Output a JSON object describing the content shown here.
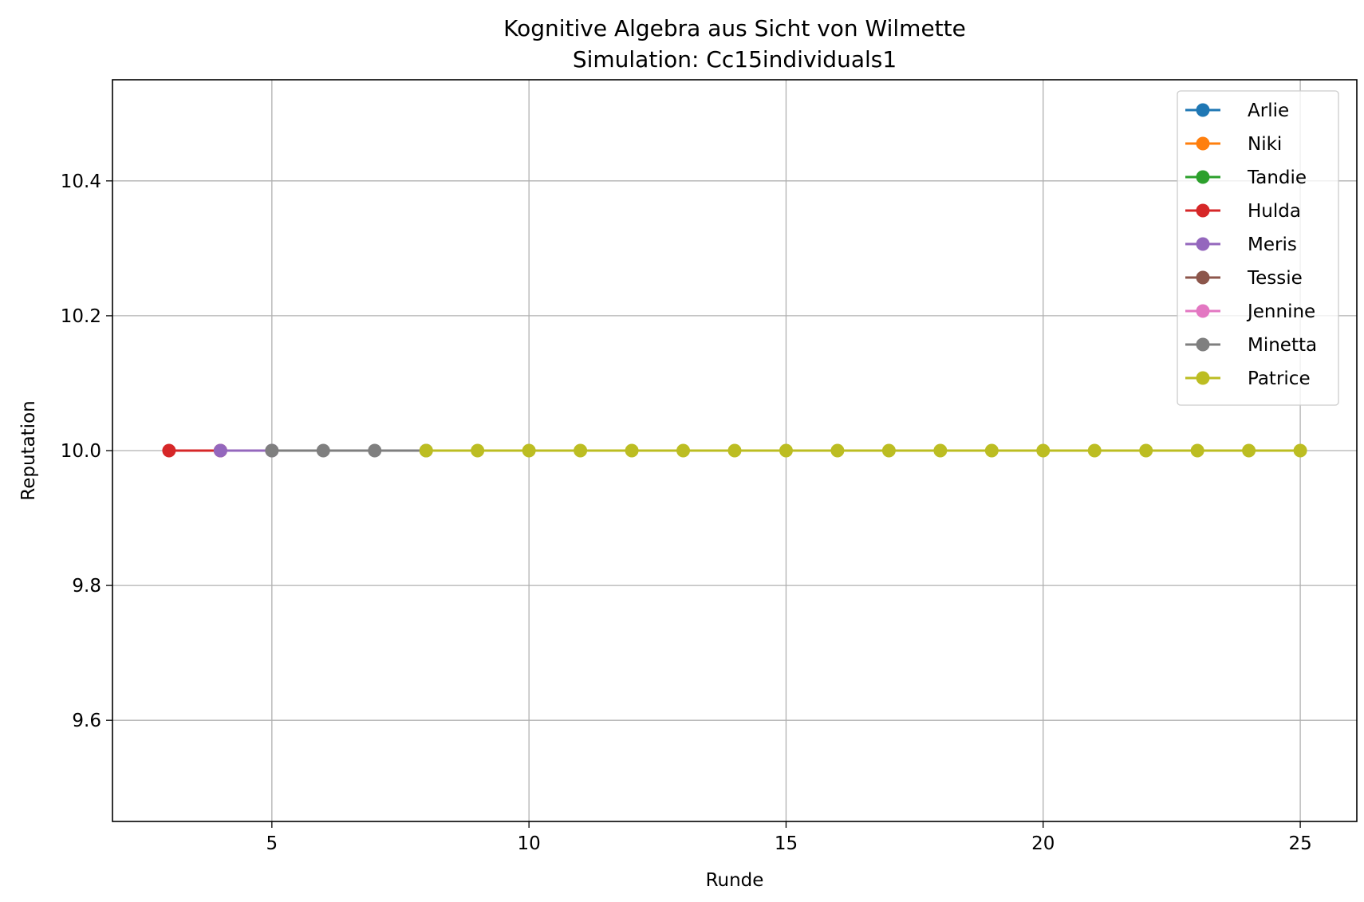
{
  "chart_data": {
    "type": "line",
    "title": "Kognitive Algebra aus Sicht von Wilmette",
    "subtitle": "Simulation: Cc15individuals1",
    "xlabel": "Runde",
    "ylabel": "Reputation",
    "xlim": [
      1.9,
      26.1
    ],
    "ylim": [
      9.45,
      10.55
    ],
    "xticks": [
      5,
      10,
      15,
      20,
      25
    ],
    "xtick_labels": [
      "5",
      "10",
      "15",
      "20",
      "25"
    ],
    "yticks": [
      9.6,
      9.8,
      10.0,
      10.2,
      10.4
    ],
    "ytick_labels": [
      "9.6",
      "9.8",
      "10.0",
      "10.2",
      "10.4"
    ],
    "grid": true,
    "legend_position": "top-right",
    "series": [
      {
        "name": "Arlie",
        "color": "#1f77b4",
        "x": [],
        "y": []
      },
      {
        "name": "Niki",
        "color": "#ff7f0e",
        "x": [],
        "y": []
      },
      {
        "name": "Tandie",
        "color": "#2ca02c",
        "x": [],
        "y": []
      },
      {
        "name": "Hulda",
        "color": "#d62728",
        "x": [
          3,
          4
        ],
        "y": [
          10.0,
          10.0
        ]
      },
      {
        "name": "Meris",
        "color": "#9467bd",
        "x": [
          4,
          5
        ],
        "y": [
          10.0,
          10.0
        ]
      },
      {
        "name": "Tessie",
        "color": "#8c564b",
        "x": [],
        "y": []
      },
      {
        "name": "Jennine",
        "color": "#e377c2",
        "x": [],
        "y": []
      },
      {
        "name": "Minetta",
        "color": "#7f7f7f",
        "x": [
          5,
          6,
          7,
          8
        ],
        "y": [
          10.0,
          10.0,
          10.0,
          10.0
        ]
      },
      {
        "name": "Patrice",
        "color": "#bcbd22",
        "x": [
          8,
          9,
          10,
          11,
          12,
          13,
          14,
          15,
          16,
          17,
          18,
          19,
          20,
          21,
          22,
          23,
          24,
          25
        ],
        "y": [
          10.0,
          10.0,
          10.0,
          10.0,
          10.0,
          10.0,
          10.0,
          10.0,
          10.0,
          10.0,
          10.0,
          10.0,
          10.0,
          10.0,
          10.0,
          10.0,
          10.0,
          10.0
        ]
      }
    ]
  }
}
